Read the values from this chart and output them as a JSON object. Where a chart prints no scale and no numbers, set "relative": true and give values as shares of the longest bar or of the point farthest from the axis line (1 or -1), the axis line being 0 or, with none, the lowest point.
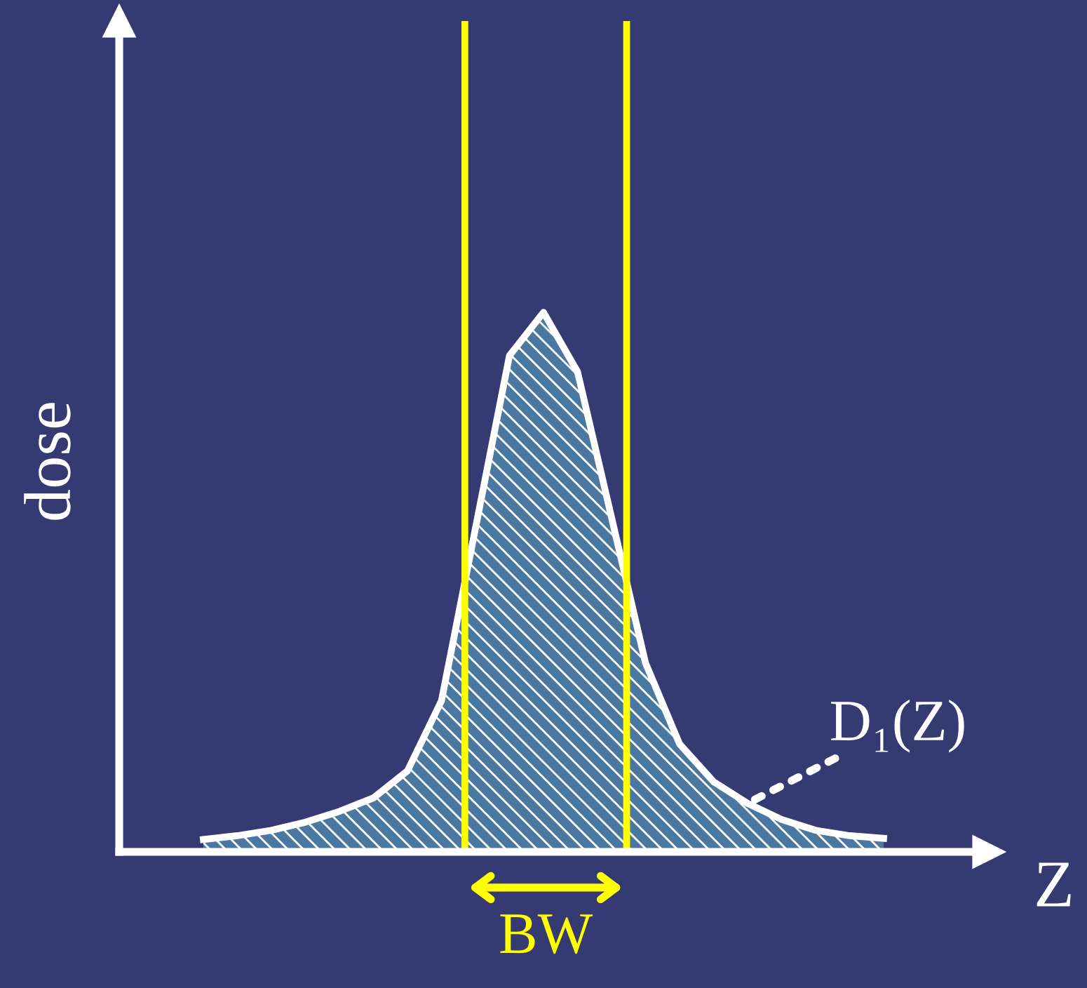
{
  "chart_data": {
    "type": "area",
    "relative": true,
    "xlabel": "Z",
    "ylabel": "dose",
    "categories": [
      null,
      null,
      null,
      null,
      null,
      null,
      null,
      null,
      null,
      null,
      null,
      null,
      null,
      null,
      null,
      null,
      null,
      null,
      null,
      null,
      null
    ],
    "series": [
      {
        "color": "#4a78a0",
        "values": [
          0.023,
          0.03,
          0.04,
          0.055,
          0.075,
          0.1,
          0.15,
          0.28,
          0.6,
          0.92,
          1.0,
          0.89,
          0.62,
          0.35,
          0.2,
          0.13,
          0.09,
          0.06,
          0.04,
          0.03,
          0.025
        ]
      }
    ],
    "annotations": [
      "D₁(Z)",
      "BW"
    ]
  }
}
